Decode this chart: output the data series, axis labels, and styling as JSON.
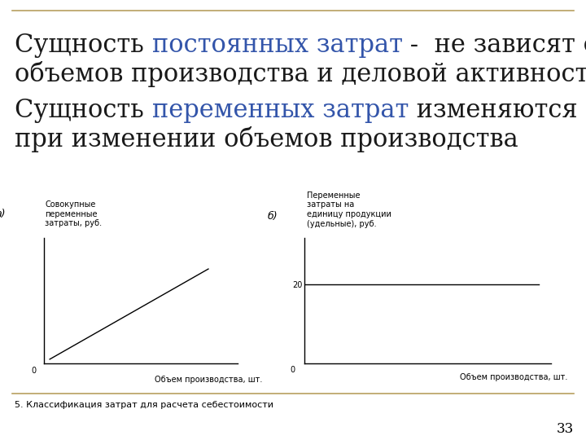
{
  "bg_color": "#ffffff",
  "border_color": "#b8a060",
  "title_line1_parts": [
    {
      "text": "Сущность ",
      "color": "#1a1a1a"
    },
    {
      "text": "постоянных затрат",
      "color": "#3355aa"
    },
    {
      "text": " -  не зависят от",
      "color": "#1a1a1a"
    }
  ],
  "title_line2": "объемов производства и деловой активности.",
  "subtitle_line1_parts": [
    {
      "text": "Сущность ",
      "color": "#1a1a1a"
    },
    {
      "text": "переменных затрат",
      "color": "#3355aa"
    },
    {
      "text": " изменяются",
      "color": "#1a1a1a"
    }
  ],
  "subtitle_line2": "при изменении объемов производства",
  "graph_a_label": "а)",
  "graph_b_label": "б)",
  "graph_a_ylabel": "Совокупные\nпеременные\nзатраты, руб.",
  "graph_a_xlabel": "Объем производства, шт.",
  "graph_b_ylabel": "Переменные\nзатраты на\nединицу продукции\n(удельные), руб.",
  "graph_b_xlabel": "Объем производства, шт.",
  "graph_b_level": 20,
  "footer_text": "5. Классификация затрат для расчета себестоимости",
  "page_number": "33",
  "text_fontsize": 22,
  "graph_label_fontsize": 9,
  "graph_axis_fontsize": 7,
  "footer_fontsize": 8
}
